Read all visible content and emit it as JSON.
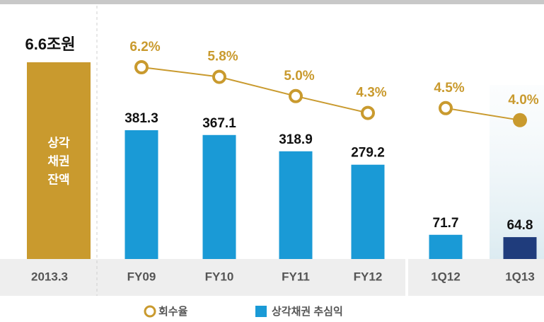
{
  "chart_data": [
    {
      "type": "bar",
      "categories": [
        "2013.3"
      ],
      "values": [
        6.6
      ],
      "value_labels": [
        "6.6조원"
      ],
      "color": "#c99a2e",
      "bar_text": [
        "상각",
        "채권",
        "잔액"
      ]
    },
    {
      "type": "bar_line",
      "categories": [
        "FY09",
        "FY10",
        "FY11",
        "FY12",
        "1Q12",
        "1Q13"
      ],
      "panels": [
        4,
        2
      ],
      "series": [
        {
          "name": "상각채권 추심익",
          "type": "bar",
          "color": "#1a9ad6",
          "colors": [
            "#1a9ad6",
            "#1a9ad6",
            "#1a9ad6",
            "#1a9ad6",
            "#1a9ad6",
            "#1f3c7c"
          ],
          "values": [
            381.3,
            367.1,
            318.9,
            279.2,
            71.7,
            64.8
          ]
        },
        {
          "name": "회수율",
          "type": "line",
          "color": "#c99a2e",
          "values": [
            6.2,
            5.8,
            5.0,
            4.3,
            4.5,
            4.0
          ],
          "value_labels": [
            "6.2%",
            "5.8%",
            "5.0%",
            "4.3%",
            "4.5%",
            "4.0%"
          ]
        }
      ]
    }
  ]
}
